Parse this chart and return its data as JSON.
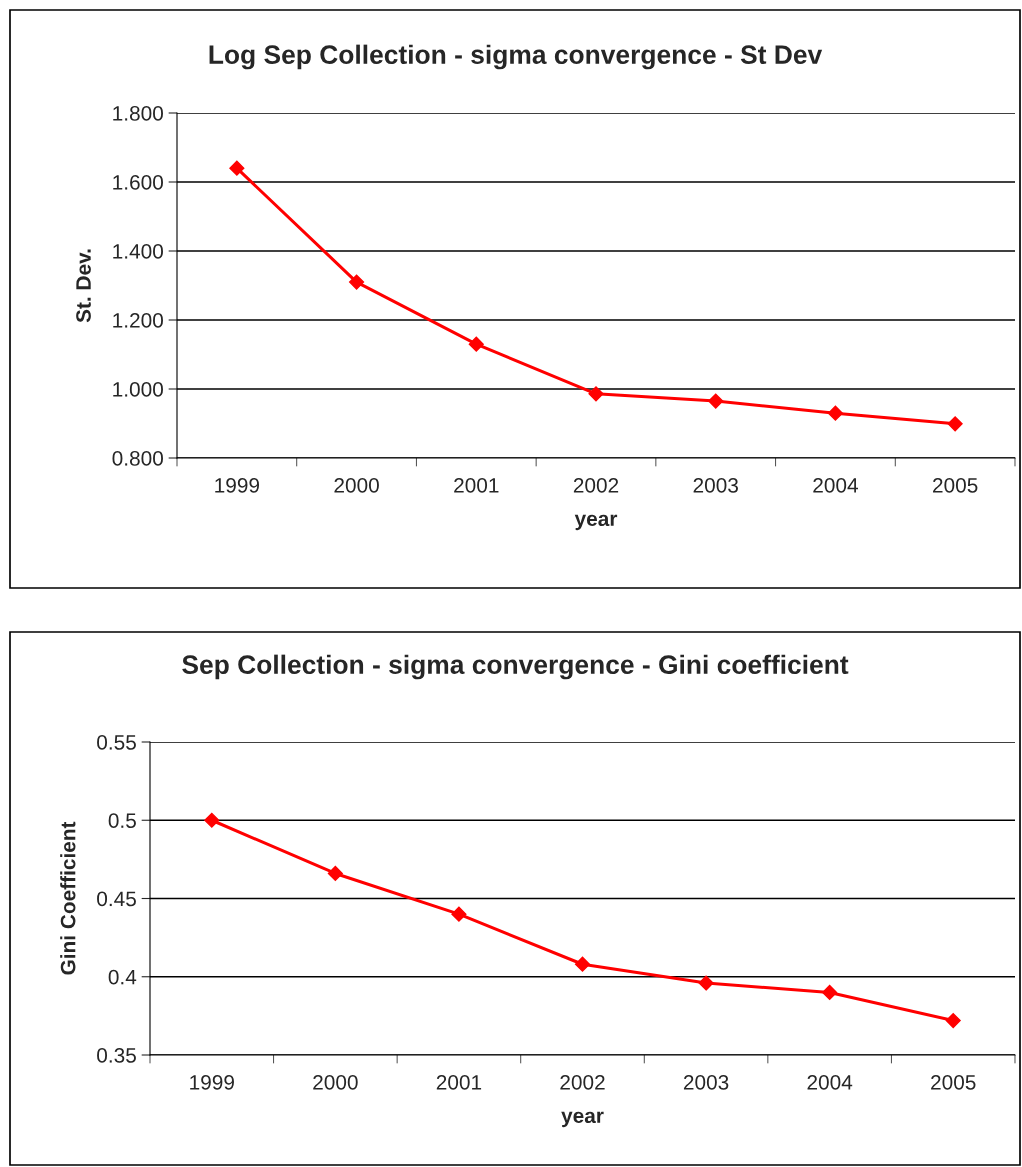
{
  "chart_data": [
    {
      "type": "line",
      "title": "Log Sep Collection - sigma convergence - St Dev",
      "xlabel": "year",
      "ylabel": "St. Dev.",
      "categories": [
        "1999",
        "2000",
        "2001",
        "2002",
        "2003",
        "2004",
        "2005"
      ],
      "series": [
        {
          "color": "#ff0000",
          "values": [
            1.64,
            1.31,
            1.13,
            0.986,
            0.965,
            0.93,
            0.899
          ]
        }
      ],
      "ylim": [
        0.8,
        1.8
      ],
      "yticks": [
        {
          "value": 0.8,
          "label": "0.800"
        },
        {
          "value": 1.0,
          "label": "1.000"
        },
        {
          "value": 1.2,
          "label": "1.200"
        },
        {
          "value": 1.4,
          "label": "1.400"
        },
        {
          "value": 1.6,
          "label": "1.600"
        },
        {
          "value": 1.8,
          "label": "1.800"
        }
      ],
      "grid": "y",
      "marker": "diamond",
      "line_style": "solid",
      "legend": false
    },
    {
      "type": "line",
      "title": "Sep Collection - sigma convergence - Gini coefficient",
      "xlabel": "year",
      "ylabel": "Gini Coefficient",
      "categories": [
        "1999",
        "2000",
        "2001",
        "2002",
        "2003",
        "2004",
        "2005"
      ],
      "series": [
        {
          "color": "#ff0000",
          "values": [
            0.5,
            0.466,
            0.44,
            0.408,
            0.396,
            0.39,
            0.372
          ]
        }
      ],
      "ylim": [
        0.35,
        0.55
      ],
      "yticks": [
        0.35,
        0.4,
        0.45,
        0.5,
        0.55
      ],
      "grid": "y",
      "marker": "diamond",
      "line_style": "solid",
      "legend": false
    }
  ]
}
